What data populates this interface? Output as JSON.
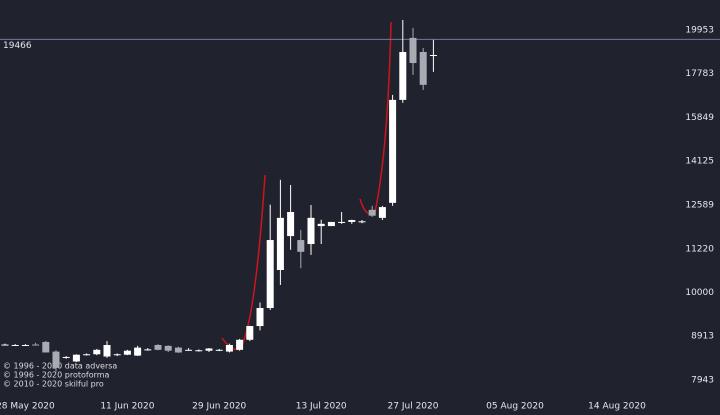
{
  "chart_data": {
    "type": "candlestick",
    "log_scale": true,
    "grid": false,
    "categories": [
      null,
      null,
      "28 May 2020",
      null,
      null,
      null,
      null,
      null,
      null,
      null,
      null,
      null,
      "11 Jun 2020",
      null,
      null,
      null,
      null,
      null,
      null,
      null,
      null,
      "29 Jun 2020",
      null,
      null,
      null,
      null,
      null,
      null,
      null,
      null,
      null,
      "13 Jul 2020",
      null,
      null,
      null,
      null,
      null,
      null,
      null,
      null,
      "27 Jul 2020",
      null,
      null,
      null,
      null,
      null,
      null,
      null,
      null,
      null,
      "05 Aug 2020",
      null,
      null,
      null,
      null,
      null,
      null,
      null,
      null,
      null,
      "14 Aug 2020",
      null,
      null,
      null
    ],
    "open": [
      8710,
      8700,
      8710,
      8720,
      8780,
      8560,
      8430,
      8340,
      8490,
      8500,
      8450,
      8490,
      8490,
      8470,
      8600,
      8710,
      8690,
      8650,
      8600,
      8580,
      8580,
      8590,
      8560,
      8600,
      8830,
      9155,
      9600,
      10610,
      11600,
      11480,
      11360,
      11910,
      11910,
      12040,
      12040,
      12040,
      12430,
      12170,
      12660,
      16600,
      19540,
      18830,
      18680,
      null,
      null,
      null,
      null,
      null,
      null,
      null,
      null,
      null,
      null,
      null,
      null,
      null,
      null,
      null,
      null,
      null,
      null,
      null,
      null,
      null
    ],
    "high": [
      8740,
      8730,
      8730,
      8760,
      8800,
      8590,
      8460,
      8500,
      8520,
      8620,
      8800,
      8520,
      8600,
      8690,
      8640,
      8730,
      8700,
      8670,
      8640,
      8610,
      8640,
      8620,
      8740,
      8850,
      9160,
      9740,
      12600,
      13450,
      13270,
      11790,
      12590,
      12110,
      12040,
      12360,
      12110,
      12100,
      12560,
      12560,
      16820,
      20485,
      20060,
      19030,
      19440,
      null,
      null,
      null,
      null,
      null,
      null,
      null,
      null,
      null,
      null,
      null,
      null,
      null,
      null,
      null,
      null,
      null,
      null,
      null,
      null,
      null
    ],
    "low": [
      8700,
      8690,
      8700,
      8700,
      8540,
      8120,
      8400,
      8330,
      8470,
      8480,
      8420,
      8460,
      8480,
      8460,
      8580,
      8590,
      8550,
      8530,
      8580,
      8560,
      8550,
      8570,
      8540,
      8580,
      8800,
      9050,
      9550,
      10200,
      11190,
      10660,
      11040,
      11360,
      11910,
      11980,
      11980,
      12000,
      12200,
      12100,
      12560,
      16470,
      17730,
      17040,
      17870,
      null,
      null,
      null,
      null,
      null,
      null,
      null,
      null,
      null,
      null,
      null,
      null,
      null,
      null,
      null,
      null,
      null,
      null,
      null,
      null,
      null
    ],
    "close": [
      8720,
      8710,
      8710,
      8700,
      8540,
      8200,
      8440,
      8490,
      8500,
      8600,
      8710,
      8500,
      8580,
      8650,
      8610,
      8600,
      8580,
      8540,
      8600,
      8590,
      8630,
      8600,
      8710,
      8830,
      9155,
      9600,
      11480,
      12170,
      12360,
      11130,
      12170,
      11980,
      12040,
      12040,
      12100,
      12060,
      12240,
      12520,
      16600,
      18830,
      18290,
      17270,
      18680,
      null,
      null,
      null,
      null,
      null,
      null,
      null,
      null,
      null,
      null,
      null,
      null,
      null,
      null,
      null,
      null,
      null,
      null,
      null,
      null,
      null
    ],
    "up_color": "#ffffff",
    "down_color": "#a9abb3",
    "ylim": [
      7636,
      21590
    ],
    "yticks": [
      7943,
      8913,
      10000,
      11220,
      12589,
      14125,
      15849,
      17783,
      19953
    ],
    "last_price": 19466,
    "last_price_color": "#6b7d99",
    "notes": [
      "© 1996 - 2020 data adversa",
      "© 1996 - 2020 protoforma",
      "© 2010 - 2020 skilful pro"
    ]
  }
}
